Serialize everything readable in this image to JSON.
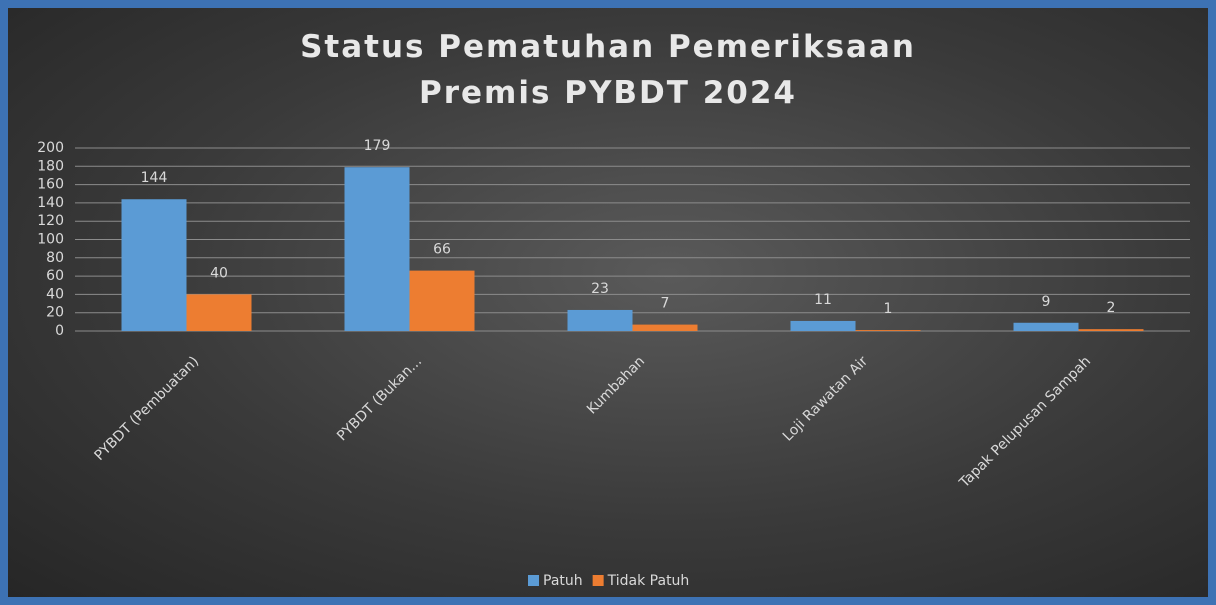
{
  "chart_data": {
    "type": "bar",
    "title": "Status Pematuhan Pemeriksaan Premis PYBDT 2024",
    "categories": [
      "PYBDT (Pembuatan)",
      "PYBDT (Bukan...",
      "Kumbahan",
      "Loji Rawatan Air",
      "Tapak Pelupusan Sampah"
    ],
    "series": [
      {
        "name": "Patuh",
        "color": "#5b9bd5",
        "values": [
          144,
          179,
          23,
          11,
          9
        ]
      },
      {
        "name": "Tidak Patuh",
        "color": "#ed7d31",
        "values": [
          40,
          66,
          7,
          1,
          2
        ]
      }
    ],
    "ylim": [
      0,
      200
    ],
    "yticks": [
      0,
      20,
      40,
      60,
      80,
      100,
      120,
      140,
      160,
      180,
      200
    ],
    "grid": true,
    "legend": "bottom"
  }
}
